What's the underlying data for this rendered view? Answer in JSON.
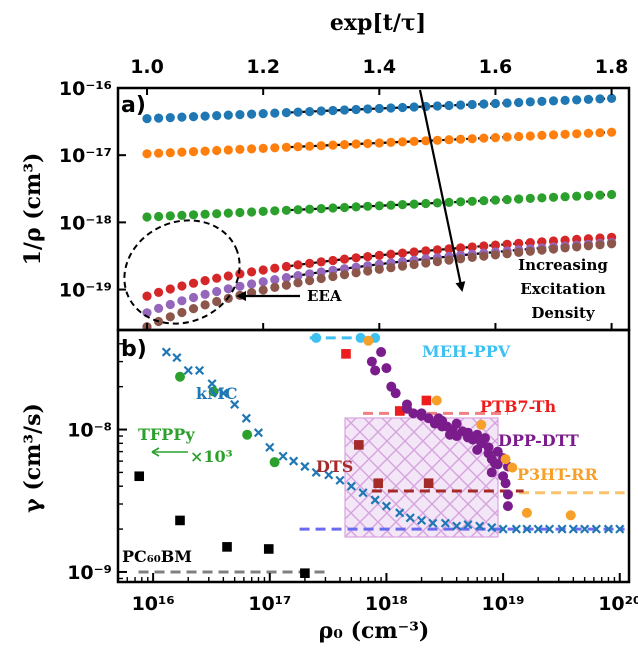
{
  "chart_data": [
    {
      "panel": "a)",
      "type": "scatter",
      "xlabel": "exp[t/τ]",
      "ylabel": "1/ρ (cm³)",
      "x_scale": "linear",
      "y_scale": "log",
      "xlim": [
        0.95,
        1.83
      ],
      "ylim": [
        2.5e-20,
        1e-16
      ],
      "xticks": [
        "1.0",
        "1.2",
        "1.4",
        "1.6",
        "1.8"
      ],
      "yticks": [
        "10⁻¹⁶",
        "10⁻¹⁷",
        "10⁻¹⁸",
        "10⁻¹⁹"
      ],
      "fit_style": "black dashed lines",
      "series": [
        {
          "color": "#1f77b4",
          "y_start": 3.5e-17,
          "y_end": 7e-17
        },
        {
          "color": "#ff7f0e",
          "y_start": 1.05e-17,
          "y_end": 2.2e-17
        },
        {
          "color": "#2ca02c",
          "y_start": 1.2e-18,
          "y_end": 2.6e-18
        },
        {
          "color": "#d62728",
          "y_start": 8e-20,
          "y_end": 6e-19
        },
        {
          "color": "#9467bd",
          "y_start": 4.5e-20,
          "y_end": 5e-19
        },
        {
          "color": "#8c564b",
          "y_start": 2.8e-20,
          "y_end": 4.8e-19
        }
      ],
      "annotations": [
        "EEA",
        "Increasing",
        "Excitation",
        "Density"
      ]
    },
    {
      "panel": "b)",
      "type": "scatter",
      "xlabel": "ρ₀ (cm⁻³)",
      "ylabel": "γ (cm³/s)",
      "x_scale": "log",
      "y_scale": "log",
      "xlim": [
        5000000000000000.0,
        1.2e+20
      ],
      "ylim": [
        8.5e-10,
        5e-08
      ],
      "xticks": [
        "10¹⁶",
        "10¹⁷",
        "10¹⁸",
        "10¹⁹",
        "10²⁰"
      ],
      "yticks": [
        "10⁻⁸",
        "10⁻⁹"
      ],
      "labels": {
        "mehppv": "MEH-PPV",
        "ptb7": "PTB7-Th",
        "dppdtt": "DPP-DTT",
        "p3htrr": "P3HT-RR",
        "dts": "DTS",
        "kmc": "kMC",
        "tfppy": "TFPPy",
        "tfppy_scale": "×10³",
        "pcbm": "PC₆₀BM"
      },
      "series": [
        {
          "name": "kMC",
          "color": "#1f77b4",
          "marker": "x",
          "x": [
            1.3e+16,
            1.6e+16,
            2e+16,
            2.5e+16,
            3.2e+16,
            4e+16,
            5e+16,
            6.3e+16,
            8e+16,
            1e+17,
            1.3e+17,
            1.6e+17,
            2e+17,
            2.5e+17,
            3.2e+17,
            4e+17,
            5e+17,
            6.3e+17,
            8e+17,
            1e+18,
            1.3e+18,
            1.6e+18,
            2e+18,
            2.5e+18,
            3.2e+18,
            4e+18,
            5e+18,
            6.3e+18,
            8e+18,
            1e+19,
            1.3e+19,
            1.6e+19,
            2e+19,
            2.5e+19,
            3.2e+19,
            4e+19,
            5e+19,
            6.3e+19,
            8e+19,
            1e+20
          ],
          "y": [
            3.5e-08,
            3.2e-08,
            2.6e-08,
            2.6e-08,
            2.1e-08,
            1.8e-08,
            1.5e-08,
            1.2e-08,
            9.5e-09,
            7.5e-09,
            6.5e-09,
            6e-09,
            5.5e-09,
            5e-09,
            4.8e-09,
            4.4e-09,
            4e-09,
            3.6e-09,
            3.2e-09,
            2.9e-09,
            2.6e-09,
            2.4e-09,
            2.3e-09,
            2.2e-09,
            2.2e-09,
            2.1e-09,
            2.15e-09,
            2.1e-09,
            2.05e-09,
            2e-09,
            2e-09,
            2e-09,
            2e-09,
            2e-09,
            2e-09,
            2e-09,
            2e-09,
            2e-09,
            2e-09,
            2e-09
          ]
        },
        {
          "name": "TFPPy",
          "color": "#2ca02c",
          "marker": "o",
          "x": [
            1.7e+16,
            3.3e+16,
            6.4e+16,
            1.1e+17
          ],
          "y": [
            2.35e-08,
            1.85e-08,
            9.2e-09,
            5.9e-09
          ]
        },
        {
          "name": "PC60BM",
          "color": "#000000",
          "marker": "s",
          "x": [
            7600000000000000.0,
            1.7e+16,
            4.3e+16,
            9.8e+16,
            2e+17
          ],
          "y": [
            4.7e-09,
            2.3e-09,
            1.5e-09,
            1.45e-09,
            9.8e-10
          ]
        },
        {
          "name": "MEH-PPV",
          "color": "#3ec1f0",
          "marker": "o",
          "x": [
            2.5e+17,
            6e+17,
            8e+17
          ],
          "y": [
            4.4e-08,
            4.4e-08,
            4.4e-08
          ]
        },
        {
          "name": "PTB7-Th",
          "color": "#ee1d1d",
          "marker": "s",
          "x": [
            4.5e+17,
            1.3e+18,
            2.2e+18
          ],
          "y": [
            3.4e-08,
            1.35e-08,
            1.6e-08
          ]
        },
        {
          "name": "DTS",
          "color": "#a52a2a",
          "marker": "s",
          "x": [
            5.8e+17,
            8.5e+17,
            2.3e+18
          ],
          "y": [
            7.8e-09,
            4.2e-09,
            4.2e-09
          ]
        },
        {
          "name": "DPP-DTT",
          "color": "#7b1c8c",
          "marker": "o",
          "x": [
            7.5e+17,
            8e+17,
            1e+18,
            1.1e+18,
            1.5e+18,
            2e+18,
            2.3e+18,
            2.6e+18,
            3e+18,
            3.3e+18,
            3.7e+18,
            4e+18,
            4.5e+18,
            5e+18,
            5.5e+18,
            6e+18,
            6.5e+18,
            7e+18,
            7.5e+18,
            8e+18,
            8.5e+18,
            9e+18,
            1e+19,
            1.1e+19,
            1.5e+18,
            2e+18,
            3e+18,
            4e+18,
            5e+18,
            6e+18,
            7.5e+18,
            8e+18,
            9e+18,
            1e+19,
            1.05e+19,
            1.1e+19,
            1.1e+19,
            9e+17,
            1.2e+18,
            1.7e+18,
            2.8e+18,
            3.5e+18
          ],
          "y": [
            3e-08,
            2.6e-08,
            2.7e-08,
            2e-08,
            1.5e-08,
            1.25e-08,
            1.2e-08,
            1.1e-08,
            1.15e-08,
            1.05e-08,
            1e-08,
            1.1e-08,
            9.7e-09,
            9.5e-09,
            8.5e-09,
            9.2e-09,
            8e-09,
            8.7e-09,
            7.5e-09,
            6.2e-09,
            5.8e-09,
            7e-09,
            6.3e-09,
            5.5e-09,
            1.4e-08,
            1.3e-08,
            1.05e-08,
            9e-09,
            8.8e-09,
            7.2e-09,
            6.8e-09,
            5e-09,
            5.7e-09,
            4.7e-09,
            4.2e-09,
            3.5e-09,
            2.9e-09,
            3.5e-08,
            1.8e-08,
            1.3e-08,
            1.2e-08,
            9.2e-09
          ]
        },
        {
          "name": "P3HT-RR",
          "color": "#f6a02a",
          "marker": "o",
          "x": [
            7e+17,
            2.7e+18,
            6.5e+18,
            1.05e+19,
            1.2e+19,
            1.6e+19,
            3.8e+19
          ],
          "y": [
            4.2e-08,
            1.6e-08,
            1.08e-08,
            6.2e-09,
            5.4e-09,
            2.6e-09,
            2.5e-09
          ]
        }
      ]
    }
  ]
}
